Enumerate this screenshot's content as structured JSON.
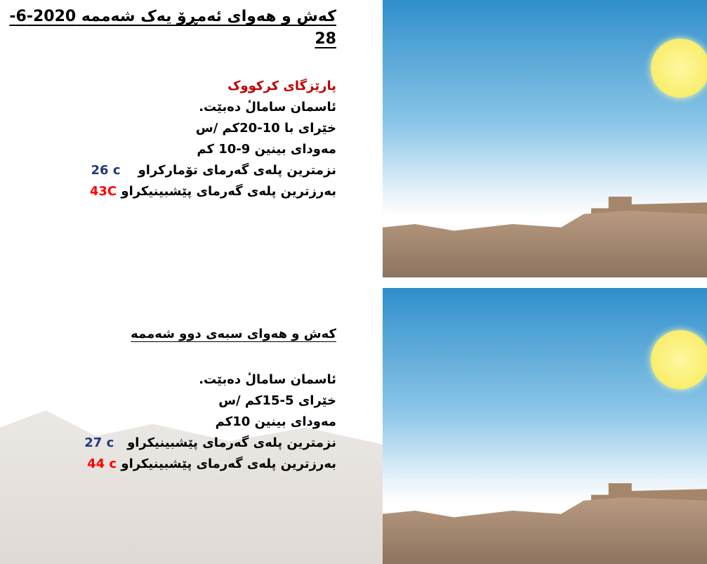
{
  "today": {
    "title": "کەش و هەوای ئەمڕۆ یەک شەممە 2020-6-28",
    "region": "پارێزگای کرکووک",
    "sky": "ئاسمان سامالٔ دەبێت.",
    "wind": "خێرای با 10-20کم /س",
    "visibility": "مەودای بینین 9-10 کم",
    "min_label": "نزمترین پلەی گەرمای تۆمارکراو",
    "min_value": "26 c",
    "max_label": "بەرزترین پلەی گەرمای پێشبینیکراو",
    "max_value": "43C"
  },
  "tomorrow": {
    "title": "کەش و هەوای سبەی دوو شەممە",
    "sky": "ئاسمان سامالٔ دەبێت.",
    "wind": "خێرای 5-15کم /س",
    "visibility": "مەودای بینین 10کم",
    "min_label": "نزمترین پلەی گەرمای پێشبینیکراو",
    "min_value": "27 c",
    "max_label": "بەرزترین پلەی گەرمای پێشبینیکراو",
    "max_value": "44 c"
  },
  "colors": {
    "region": "#c00000",
    "min": "#1f3a7a",
    "max": "#ff0000"
  }
}
